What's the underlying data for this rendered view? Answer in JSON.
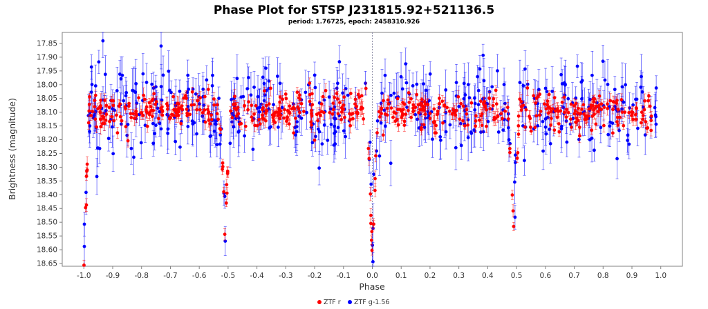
{
  "chart_data": {
    "type": "scatter",
    "title": "Phase Plot for STSP J231815.92+521136.5",
    "subtitle": "period: 1.76725, epoch: 2458310.926",
    "xlabel": "Phase",
    "ylabel": "Brightness (magnitude)",
    "xlim": [
      -1.075,
      1.075
    ],
    "ylim": [
      18.66,
      17.81
    ],
    "y_inverted": true,
    "x_ticks": [
      "-1.0",
      "-0.9",
      "-0.8",
      "-0.7",
      "-0.6",
      "-0.5",
      "-0.4",
      "-0.3",
      "-0.2",
      "-0.1",
      "0.0",
      "0.1",
      "0.2",
      "0.3",
      "0.4",
      "0.5",
      "0.6",
      "0.7",
      "0.8",
      "0.9",
      "1.0"
    ],
    "y_ticks": [
      "17.85",
      "17.90",
      "17.95",
      "18.00",
      "18.05",
      "18.10",
      "18.15",
      "18.20",
      "18.25",
      "18.30",
      "18.35",
      "18.40",
      "18.45",
      "18.50",
      "18.55",
      "18.60",
      "18.65"
    ],
    "grid": false,
    "reference_line_x": 0.0,
    "legend_position": "bottom-center",
    "series": [
      {
        "name": "ZTF r",
        "color": "#ff0000",
        "baseline_mag": 18.095,
        "scatter_mag": 0.032,
        "error_mag": 0.02,
        "points_per_cycle": 300,
        "primary_eclipse": {
          "phase": 0.0,
          "depth_mag": 0.55,
          "half_width_phase": 0.018
        },
        "secondary_eclipse": {
          "phase": 0.49,
          "depth_mag": 0.39,
          "half_width_phase": 0.02
        }
      },
      {
        "name": "ZTF g-1.56",
        "color": "#0000ff",
        "baseline_mag": 18.09,
        "scatter_mag": 0.075,
        "error_mag": 0.065,
        "points_per_cycle": 230,
        "primary_eclipse": {
          "phase": 0.0,
          "depth_mag": 0.5,
          "half_width_phase": 0.018
        },
        "secondary_eclipse": {
          "phase": 0.49,
          "depth_mag": 0.33,
          "half_width_phase": 0.02
        }
      }
    ]
  }
}
